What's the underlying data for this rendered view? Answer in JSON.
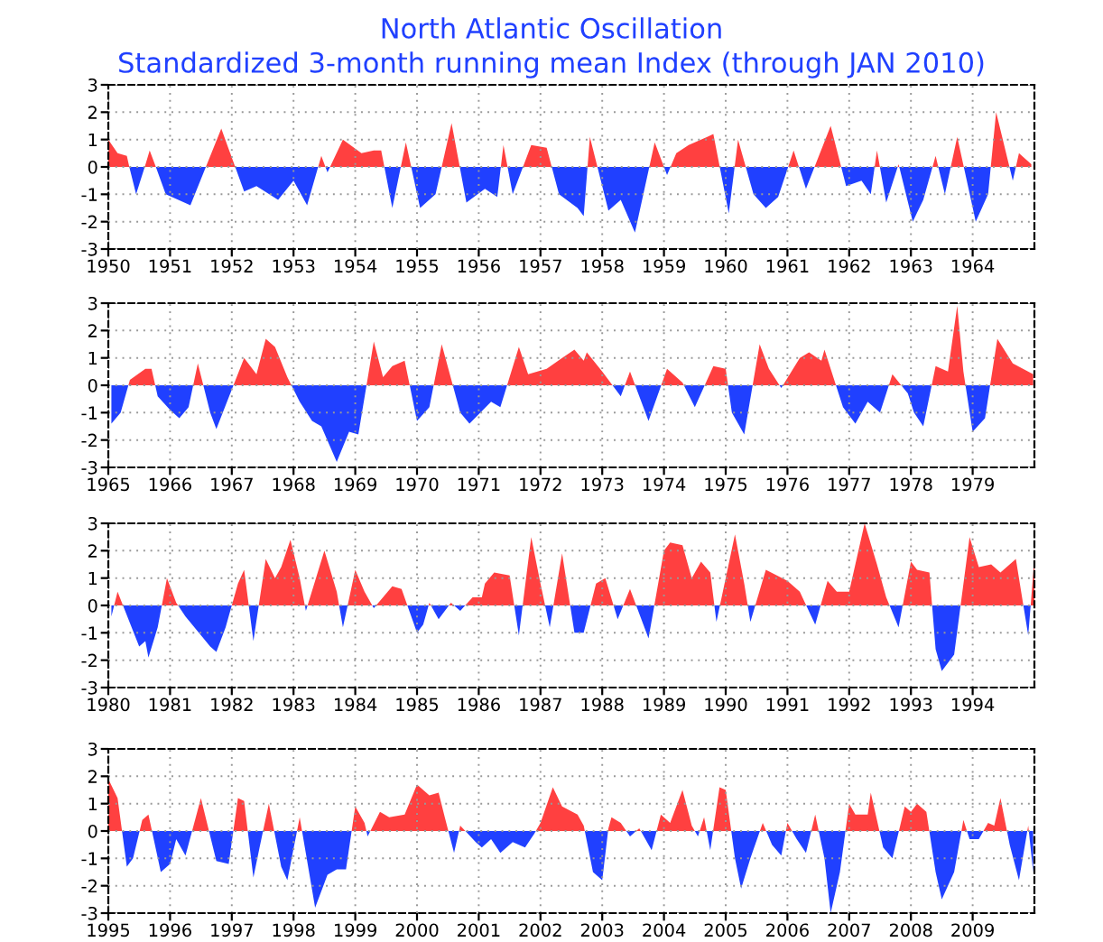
{
  "chart_data": [
    {
      "type": "area",
      "title": "North Atlantic Oscillation",
      "subtitle": "Standardized 3-month running mean Index (through JAN 2010)",
      "xlim": [
        1950,
        1965
      ],
      "xticks": [
        1950,
        1951,
        1952,
        1953,
        1954,
        1955,
        1956,
        1957,
        1958,
        1959,
        1960,
        1961,
        1962,
        1963,
        1964
      ],
      "ylim": [
        -3,
        3
      ],
      "yticks": [
        -3,
        -2,
        -1,
        0,
        1,
        2,
        3
      ],
      "grid": true,
      "series": [
        {
          "color": "#ff4040",
          "x": [
            1950.0,
            1950.15,
            1950.3,
            1950.67,
            1951.83,
            1953.45,
            1953.8,
            1954.1,
            1954.3,
            1954.42,
            1954.82,
            1955.56,
            1956.4,
            1956.85,
            1957.1,
            1957.8,
            1958.85,
            1959.2,
            1959.4,
            1959.7,
            1959.8,
            1960.2,
            1961.1,
            1961.7,
            1962.45,
            1962.8,
            1963.4,
            1963.75,
            1964.38,
            1964.75,
            1964.95
          ],
          "values": [
            1.0,
            0.5,
            0.4,
            0.6,
            1.4,
            0.4,
            1.0,
            0.5,
            0.6,
            0.6,
            0.9,
            1.6,
            0.8,
            0.8,
            0.7,
            1.1,
            0.9,
            0.5,
            0.8,
            1.1,
            1.2,
            1.0,
            0.6,
            1.5,
            0.6,
            0.1,
            0.4,
            1.1,
            2.0,
            0.5,
            0.1
          ]
        },
        {
          "color": "#2040ff",
          "x": [
            1950.34,
            1950.45,
            1950.59,
            1950.77,
            1950.93,
            1951.33,
            1952.2,
            1952.4,
            1952.75,
            1953.0,
            1953.22,
            1953.55,
            1954.6,
            1955.05,
            1955.3,
            1955.8,
            1956.1,
            1956.3,
            1956.55,
            1957.3,
            1957.6,
            1957.7,
            1958.1,
            1958.3,
            1958.53,
            1959.05,
            1960.05,
            1960.45,
            1960.65,
            1960.85,
            1961.3,
            1961.95,
            1962.2,
            1962.35,
            1962.6,
            1963.03,
            1963.2,
            1963.55,
            1964.05,
            1964.25,
            1964.65
          ],
          "values": [
            0.0,
            -1.0,
            0.0,
            0.0,
            -1.0,
            -1.4,
            -0.9,
            -0.7,
            -1.2,
            -0.5,
            -1.4,
            -0.2,
            -1.5,
            -1.5,
            -1.0,
            -1.3,
            -0.8,
            -1.1,
            -1.0,
            -1.0,
            -1.5,
            -1.8,
            -1.6,
            -1.2,
            -2.4,
            -0.3,
            -1.7,
            -1.0,
            -1.5,
            -1.1,
            -0.8,
            -0.7,
            -0.5,
            -1.0,
            -1.3,
            -2.0,
            -1.2,
            -1.0,
            -2.0,
            -1.0,
            -0.5
          ]
        }
      ]
    },
    {
      "type": "area",
      "xlim": [
        1965,
        1980
      ],
      "xticks": [
        1965,
        1966,
        1967,
        1968,
        1969,
        1970,
        1971,
        1972,
        1973,
        1974,
        1975,
        1976,
        1977,
        1978,
        1979
      ],
      "ylim": [
        -3,
        3
      ],
      "yticks": [
        -3,
        -2,
        -1,
        0,
        1,
        2,
        3
      ],
      "grid": true,
      "series": [
        {
          "color": "#ff4040",
          "x": [
            1965.35,
            1965.6,
            1965.7,
            1966.45,
            1967.2,
            1967.4,
            1967.55,
            1967.7,
            1967.9,
            1969.3,
            1969.45,
            1969.6,
            1969.8,
            1970.4,
            1971.65,
            1971.8,
            1972.1,
            1972.35,
            1972.55,
            1972.7,
            1972.75,
            1973.0,
            1973.45,
            1974.05,
            1974.3,
            1974.8,
            1975.0,
            1975.55,
            1975.7,
            1976.2,
            1976.35,
            1976.55,
            1976.6,
            1977.7,
            1978.4,
            1978.6,
            1978.75,
            1978.85,
            1979.4,
            1979.65,
            1979.98
          ],
          "values": [
            0.2,
            0.6,
            0.6,
            0.8,
            1.0,
            0.4,
            1.7,
            1.4,
            0.3,
            1.6,
            0.3,
            0.7,
            0.9,
            1.5,
            1.4,
            0.4,
            0.6,
            1.0,
            1.3,
            0.9,
            1.2,
            0.5,
            0.5,
            0.6,
            0.1,
            0.7,
            0.6,
            1.5,
            0.6,
            1.0,
            1.2,
            0.9,
            1.3,
            0.4,
            0.7,
            0.5,
            2.9,
            0.5,
            1.7,
            0.8,
            0.4
          ]
        },
        {
          "color": "#2040ff",
          "x": [
            1965.05,
            1965.2,
            1965.8,
            1966.0,
            1966.15,
            1966.3,
            1966.65,
            1966.75,
            1968.1,
            1968.3,
            1968.45,
            1968.7,
            1968.9,
            1969.05,
            1970.0,
            1970.2,
            1970.7,
            1970.85,
            1971.2,
            1971.35,
            1973.3,
            1973.75,
            1974.5,
            1975.1,
            1975.3,
            1975.9,
            1976.9,
            1977.1,
            1977.3,
            1977.5,
            1977.95,
            1978.05,
            1978.2,
            1979.0,
            1979.2
          ],
          "values": [
            -1.4,
            -1.0,
            -0.4,
            -0.9,
            -1.2,
            -0.8,
            -1.0,
            -1.6,
            -0.6,
            -1.3,
            -1.5,
            -2.8,
            -1.7,
            -1.8,
            -1.3,
            -0.8,
            -1.0,
            -1.4,
            -0.6,
            -0.8,
            -0.4,
            -1.3,
            -0.8,
            -1.0,
            -1.8,
            -0.1,
            -0.8,
            -1.4,
            -0.6,
            -1.0,
            -0.3,
            -1.0,
            -1.5,
            -1.7,
            -1.2
          ]
        }
      ]
    },
    {
      "type": "area",
      "xlim": [
        1980,
        1995
      ],
      "xticks": [
        1980,
        1981,
        1982,
        1983,
        1984,
        1985,
        1986,
        1987,
        1988,
        1989,
        1990,
        1991,
        1992,
        1993,
        1994
      ],
      "ylim": [
        -3,
        3
      ],
      "yticks": [
        -3,
        -2,
        -1,
        0,
        1,
        2,
        3
      ],
      "grid": true,
      "series": [
        {
          "color": "#ff4040",
          "x": [
            1980.15,
            1980.95,
            1981.1,
            1982.1,
            1982.2,
            1982.55,
            1982.7,
            1982.8,
            1982.95,
            1983.1,
            1983.5,
            1983.7,
            1984.0,
            1984.15,
            1984.6,
            1984.75,
            1985.2,
            1985.55,
            1985.9,
            1986.05,
            1986.1,
            1986.25,
            1986.5,
            1986.85,
            1987.0,
            1987.35,
            1987.9,
            1988.05,
            1988.45,
            1989.0,
            1989.1,
            1989.3,
            1989.45,
            1989.6,
            1989.75,
            1990.15,
            1990.3,
            1990.65,
            1991.0,
            1991.2,
            1991.65,
            1991.8,
            1992.0,
            1992.25,
            1992.45,
            1992.6,
            1993.0,
            1993.1,
            1993.3,
            1993.95,
            1994.1,
            1994.3,
            1994.45,
            1994.7,
            1995.0
          ],
          "values": [
            0.5,
            1.0,
            0.1,
            0.8,
            1.3,
            1.7,
            1.0,
            1.4,
            2.4,
            1.0,
            2.0,
            0.5,
            1.3,
            0.5,
            0.7,
            0.6,
            0.1,
            0.1,
            0.3,
            0.3,
            0.8,
            1.2,
            1.1,
            2.5,
            0.8,
            1.9,
            0.8,
            1.0,
            0.6,
            2.0,
            2.3,
            2.2,
            1.0,
            1.6,
            1.2,
            2.6,
            0.8,
            1.3,
            0.9,
            0.5,
            0.9,
            0.5,
            0.5,
            3.0,
            1.5,
            0.3,
            1.6,
            1.3,
            1.2,
            2.5,
            1.4,
            1.5,
            1.2,
            1.7,
            1.7
          ]
        },
        {
          "color": "#2040ff",
          "x": [
            1980.05,
            1980.5,
            1980.6,
            1980.65,
            1980.8,
            1981.25,
            1981.65,
            1981.75,
            1981.9,
            1982.35,
            1983.2,
            1983.8,
            1984.3,
            1985.0,
            1985.1,
            1985.35,
            1985.7,
            1986.65,
            1987.15,
            1987.55,
            1987.7,
            1988.25,
            1988.75,
            1989.85,
            1990.4,
            1991.45,
            1992.8,
            1993.4,
            1993.5,
            1993.7,
            1994.9
          ],
          "values": [
            -0.4,
            -1.5,
            -1.3,
            -1.9,
            -0.8,
            -0.4,
            -1.5,
            -1.7,
            -0.8,
            -1.3,
            -0.2,
            -0.8,
            -0.1,
            -1.0,
            -0.7,
            -0.5,
            -0.2,
            -1.1,
            -0.8,
            -1.0,
            -1.0,
            -0.5,
            -1.2,
            -0.6,
            -0.6,
            -0.7,
            -0.8,
            -1.6,
            -2.4,
            -1.8,
            -1.1
          ]
        }
      ]
    },
    {
      "type": "area",
      "xlim": [
        1995,
        2010
      ],
      "xticks": [
        1995,
        1996,
        1997,
        1998,
        1999,
        2000,
        2001,
        2002,
        2003,
        2004,
        2005,
        2006,
        2007,
        2008,
        2009
      ],
      "ylim": [
        -3,
        3
      ],
      "yticks": [
        -3,
        -2,
        -1,
        0,
        1,
        2,
        3
      ],
      "grid": true,
      "series": [
        {
          "color": "#ff4040",
          "x": [
            1995.0,
            1995.15,
            1995.55,
            1995.65,
            1996.5,
            1997.1,
            1997.2,
            1997.6,
            1998.1,
            1999.0,
            1999.15,
            1999.4,
            1999.55,
            1999.8,
            2000.0,
            2000.2,
            2000.35,
            2000.45,
            2000.7,
            2002.0,
            2002.2,
            2002.35,
            2002.6,
            2002.7,
            2003.1,
            2003.15,
            2003.3,
            2003.6,
            2003.95,
            2004.1,
            2004.3,
            2004.45,
            2004.65,
            2004.9,
            2005.0,
            2005.6,
            2006.0,
            2006.45,
            2007.0,
            2007.1,
            2007.3,
            2007.35,
            2007.9,
            2008.0,
            2008.1,
            2008.25,
            2008.85,
            2009.25,
            2009.35,
            2009.45,
            2009.9
          ],
          "values": [
            1.9,
            1.2,
            0.4,
            0.6,
            1.2,
            1.2,
            1.1,
            1.0,
            0.5,
            0.9,
            0.3,
            0.7,
            0.5,
            0.6,
            1.7,
            1.3,
            1.4,
            0.5,
            0.2,
            0.3,
            1.6,
            0.9,
            0.6,
            0.2,
            0.1,
            0.5,
            0.3,
            0.1,
            0.6,
            0.3,
            1.5,
            0.2,
            0.5,
            1.6,
            1.5,
            0.3,
            0.3,
            0.6,
            1.0,
            0.6,
            0.6,
            1.4,
            0.9,
            0.7,
            1.0,
            0.7,
            0.4,
            0.3,
            0.2,
            1.2,
            0.2
          ]
        },
        {
          "color": "#2040ff",
          "x": [
            1995.3,
            1995.4,
            1995.85,
            1996.0,
            1996.1,
            1996.25,
            1996.75,
            1996.95,
            1997.35,
            1997.45,
            1997.8,
            1997.9,
            1998.35,
            1998.55,
            1998.7,
            1998.85,
            1999.2,
            2000.6,
            2000.95,
            2001.05,
            2001.2,
            2001.35,
            2001.55,
            2001.75,
            2001.9,
            2002.85,
            2003.0,
            2003.45,
            2003.8,
            2004.55,
            2004.75,
            2005.15,
            2005.25,
            2005.4,
            2005.75,
            2005.9,
            2006.15,
            2006.3,
            2006.6,
            2006.7,
            2006.85,
            2007.55,
            2007.7,
            2008.4,
            2008.5,
            2008.7,
            2008.95,
            2009.1,
            2009.6,
            2009.75,
            2009.98
          ],
          "values": [
            -1.3,
            -1.0,
            -1.5,
            -1.2,
            -0.3,
            -0.9,
            -1.1,
            -1.2,
            -1.7,
            -0.6,
            -1.3,
            -1.8,
            -2.8,
            -1.6,
            -1.4,
            -1.4,
            -0.2,
            -0.8,
            -0.4,
            -0.6,
            -0.3,
            -0.8,
            -0.4,
            -0.6,
            -0.1,
            -1.5,
            -1.8,
            -0.2,
            -0.7,
            -0.2,
            -0.7,
            -1.0,
            -2.1,
            -1.0,
            -0.5,
            -0.9,
            -0.3,
            -0.8,
            -1.0,
            -3.0,
            -1.5,
            -0.6,
            -1.0,
            -1.5,
            -2.5,
            -1.5,
            -0.3,
            -0.3,
            -0.5,
            -1.8,
            -1.5
          ]
        }
      ]
    }
  ]
}
